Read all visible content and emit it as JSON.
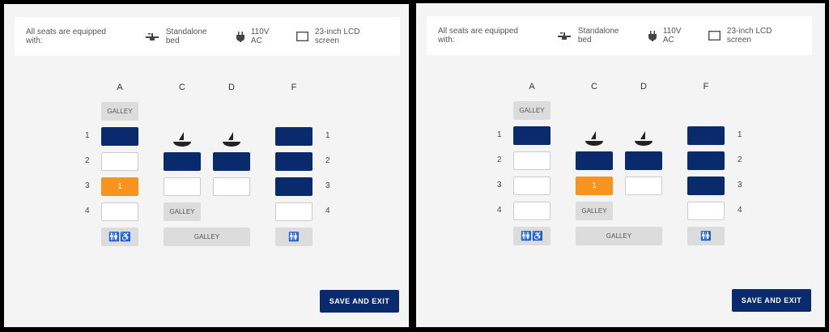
{
  "amenities": {
    "label": "All seats are equipped with:",
    "items": [
      {
        "icon": "bed-icon",
        "label": "Standalone bed"
      },
      {
        "icon": "plug-icon",
        "label": "110V AC"
      },
      {
        "icon": "screen-icon",
        "label": "23-inch LCD screen"
      }
    ]
  },
  "columns": [
    "A",
    "C",
    "D",
    "F"
  ],
  "rows": [
    "1",
    "2",
    "3",
    "4"
  ],
  "galley_label": "GALLEY",
  "save_label": "SAVE AND EXIT",
  "colors": {
    "occupied": "#0a2a6e",
    "selected": "#f7941d",
    "available": "#ffffff"
  },
  "panels": [
    {
      "seats": {
        "A": [
          "occupied",
          "available",
          "selected",
          "available"
        ],
        "C": [
          null,
          "occupied",
          "available",
          null
        ],
        "D": [
          null,
          "occupied",
          "available",
          null
        ],
        "F": [
          "occupied",
          "occupied",
          "occupied",
          "available"
        ]
      },
      "selected_label": "1"
    },
    {
      "seats": {
        "A": [
          "occupied",
          "available",
          "available",
          "available"
        ],
        "C": [
          null,
          "occupied",
          "selected",
          null
        ],
        "D": [
          null,
          "occupied",
          "available",
          null
        ],
        "F": [
          "occupied",
          "occupied",
          "occupied",
          "available"
        ]
      },
      "selected_label": "1"
    }
  ]
}
